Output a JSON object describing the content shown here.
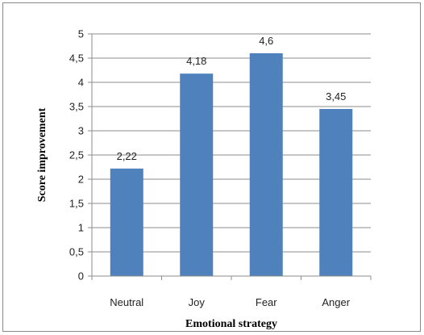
{
  "chart_data": {
    "type": "bar",
    "title": "",
    "xlabel": "Emotional strategy",
    "ylabel": "Score improvement",
    "categories": [
      "Neutral",
      "Joy",
      "Fear",
      "Anger"
    ],
    "values": [
      2.22,
      4.18,
      4.6,
      3.45
    ],
    "data_labels": [
      "2,22",
      "4,18",
      "4,6",
      "3,45"
    ],
    "ylim": [
      0,
      5
    ],
    "yticks": [
      0,
      0.5,
      1,
      1.5,
      2,
      2.5,
      3,
      3.5,
      4,
      4.5,
      5
    ],
    "ytick_labels": [
      "0",
      "0,5",
      "1",
      "1,5",
      "2",
      "2,5",
      "3",
      "3,5",
      "4",
      "4,5",
      "5"
    ],
    "grid": true,
    "legend": "none",
    "bar_color": "#4F81BD"
  }
}
